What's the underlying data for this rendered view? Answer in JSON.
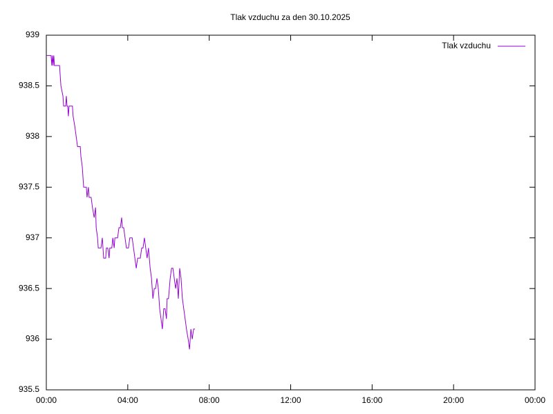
{
  "chart_data": {
    "type": "line",
    "title": "Tlak vzduchu za den 30.10.2025",
    "xlim": [
      0,
      1440
    ],
    "xticks": [
      {
        "value": 0,
        "label": "00:00"
      },
      {
        "value": 240,
        "label": "04:00"
      },
      {
        "value": 480,
        "label": "08:00"
      },
      {
        "value": 720,
        "label": "12:00"
      },
      {
        "value": 960,
        "label": "16:00"
      },
      {
        "value": 1200,
        "label": "20:00"
      },
      {
        "value": 1440,
        "label": "00:00"
      }
    ],
    "ylim": [
      935.5,
      939
    ],
    "yticks": [
      935.5,
      936,
      936.5,
      937,
      937.5,
      938,
      938.5,
      939
    ],
    "legend": "top-right",
    "x": [
      0,
      14,
      16,
      18,
      20,
      22,
      24,
      39,
      43,
      49,
      51,
      57,
      59,
      61,
      63,
      65,
      67,
      77,
      79,
      84,
      88,
      92,
      100,
      102,
      106,
      110,
      118,
      120,
      124,
      126,
      132,
      136,
      141,
      145,
      147,
      151,
      153,
      161,
      165,
      169,
      175,
      177,
      181,
      185,
      187,
      193,
      196,
      200,
      202,
      210,
      214,
      218,
      222,
      224,
      228,
      232,
      236,
      242,
      246,
      253,
      257,
      261,
      265,
      269,
      277,
      281,
      285,
      289,
      293,
      297,
      301,
      306,
      310,
      314,
      318,
      322,
      326,
      330,
      334,
      338,
      342,
      346,
      350,
      354,
      356,
      360,
      365,
      369,
      373,
      377,
      381,
      385,
      389,
      393,
      397,
      401,
      405,
      409,
      413,
      418,
      422,
      426,
      430,
      434,
      438
    ],
    "series": [
      {
        "name": "Tlak vzduchu",
        "color": "#9400d3",
        "values": [
          938.8,
          938.8,
          938.7,
          938.8,
          938.7,
          938.8,
          938.7,
          938.7,
          938.5,
          938.4,
          938.3,
          938.3,
          938.4,
          938.3,
          938.3,
          938.2,
          938.3,
          938.3,
          938.2,
          938.1,
          938.0,
          937.9,
          937.9,
          937.8,
          937.7,
          937.5,
          937.5,
          937.4,
          937.5,
          937.4,
          937.4,
          937.3,
          937.2,
          937.3,
          937.1,
          937.0,
          936.9,
          936.9,
          937.0,
          936.8,
          936.8,
          936.9,
          936.9,
          936.8,
          936.9,
          936.9,
          937.0,
          936.9,
          937.0,
          937.0,
          937.1,
          937.1,
          937.2,
          937.1,
          937.1,
          937.0,
          936.9,
          936.9,
          937.0,
          937.0,
          936.9,
          936.8,
          936.7,
          936.8,
          936.8,
          936.9,
          936.9,
          937.0,
          936.9,
          936.8,
          936.9,
          936.7,
          936.6,
          936.4,
          936.5,
          936.5,
          936.6,
          936.5,
          936.3,
          936.2,
          936.1,
          936.3,
          936.3,
          936.2,
          936.4,
          936.4,
          936.6,
          936.7,
          936.7,
          936.6,
          936.5,
          936.6,
          936.4,
          936.7,
          936.6,
          936.4,
          936.3,
          936.2,
          936.1,
          936.0,
          935.9,
          936.1,
          936.0,
          936.1,
          936.1
        ]
      }
    ]
  }
}
